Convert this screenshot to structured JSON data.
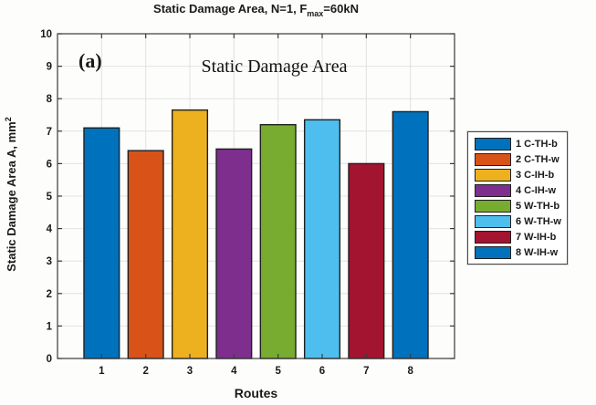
{
  "figure": {
    "title": {
      "prefix": "Static Damage Area, N=1, F",
      "sub": "max",
      "suffix": "=60kN"
    },
    "ylabel": {
      "text": "Static Damage Area A, mm",
      "sup": "2"
    },
    "xlabel": "Routes",
    "annotations": {
      "panel_label": "(a)",
      "inner_title": "Static Damage Area"
    }
  },
  "chart_data": {
    "type": "bar",
    "title": "Static Damage Area, N=1, F_max=60kN",
    "xlabel": "Routes",
    "ylabel": "Static Damage Area A, mm^2",
    "categories": [
      "1",
      "2",
      "3",
      "4",
      "5",
      "6",
      "7",
      "8"
    ],
    "values": [
      7.1,
      6.4,
      7.65,
      6.45,
      7.2,
      7.35,
      6.0,
      7.6
    ],
    "bar_colors": [
      "#0072BD",
      "#D95319",
      "#EDB120",
      "#7E2F8E",
      "#77AC30",
      "#4DBEEE",
      "#A2142F",
      "#0072BD"
    ],
    "bar_width_fraction": 0.8,
    "xlim": [
      0,
      9
    ],
    "ylim": [
      0,
      10
    ],
    "ytick_step": 1,
    "grid": true,
    "legend_position": "outside-right",
    "legend": [
      {
        "label": "1 C-TH-b",
        "color": "#0072BD"
      },
      {
        "label": "2 C-TH-w",
        "color": "#D95319"
      },
      {
        "label": "3 C-IH-b",
        "color": "#EDB120"
      },
      {
        "label": "4 C-IH-w",
        "color": "#7E2F8E"
      },
      {
        "label": "5 W-TH-b",
        "color": "#77AC30"
      },
      {
        "label": "6 W-TH-w",
        "color": "#4DBEEE"
      },
      {
        "label": "7 W-IH-b",
        "color": "#A2142F"
      },
      {
        "label": "8 W-IH-w",
        "color": "#0072BD"
      }
    ]
  },
  "style": {
    "axis_color": "#3b3b3b",
    "grid_color": "#e2e2e2",
    "bar_edge_color": "#1f1f1f",
    "background": "#ffffff"
  }
}
